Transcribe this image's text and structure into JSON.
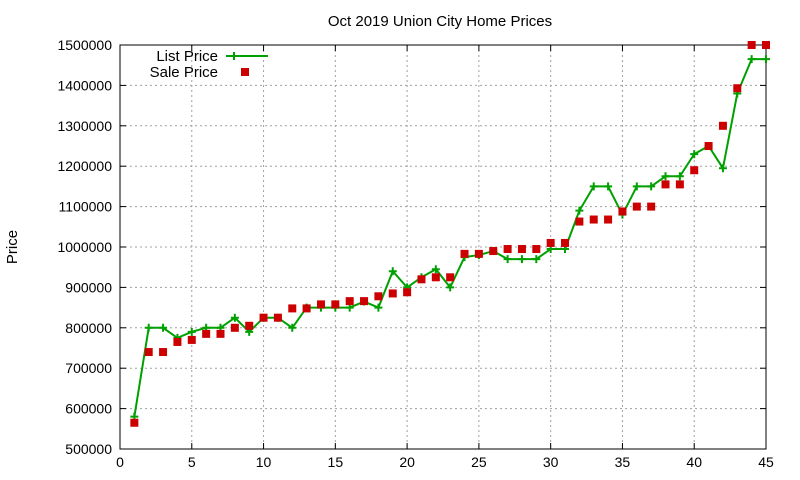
{
  "chart_data": {
    "type": "line",
    "title": "Oct 2019 Union City Home Prices",
    "xlabel": "",
    "ylabel": "Price",
    "xlim": [
      0,
      45
    ],
    "ylim": [
      500000,
      1500000
    ],
    "xticks": [
      0,
      5,
      10,
      15,
      20,
      25,
      30,
      35,
      40,
      45
    ],
    "yticks": [
      500000,
      600000,
      700000,
      800000,
      900000,
      1000000,
      1100000,
      1200000,
      1300000,
      1400000,
      1500000
    ],
    "grid": true,
    "legend_position": "top-left",
    "series": [
      {
        "name": "List Price",
        "style": "line-with-plus-markers",
        "color": "#00a000",
        "x": [
          1,
          2,
          3,
          4,
          5,
          6,
          7,
          8,
          9,
          10,
          11,
          12,
          13,
          14,
          15,
          16,
          17,
          18,
          19,
          20,
          21,
          22,
          23,
          24,
          25,
          26,
          27,
          28,
          29,
          30,
          31,
          32,
          33,
          34,
          35,
          36,
          37,
          38,
          39,
          40,
          41,
          42,
          43,
          44,
          45
        ],
        "y": [
          580000,
          800000,
          800000,
          775000,
          790000,
          800000,
          800000,
          825000,
          790000,
          825000,
          825000,
          800000,
          850000,
          850000,
          850000,
          850000,
          865000,
          850000,
          940000,
          900000,
          925000,
          945000,
          900000,
          975000,
          980000,
          990000,
          970000,
          970000,
          970000,
          995000,
          995000,
          1090000,
          1150000,
          1150000,
          1080000,
          1150000,
          1150000,
          1175000,
          1175000,
          1230000,
          1250000,
          1195000,
          1380000,
          1465000,
          1465000
        ]
      },
      {
        "name": "Sale Price",
        "style": "square-markers",
        "color": "#cc0000",
        "x": [
          1,
          2,
          3,
          4,
          5,
          6,
          7,
          8,
          9,
          10,
          11,
          12,
          13,
          14,
          15,
          16,
          17,
          18,
          19,
          20,
          21,
          22,
          23,
          24,
          25,
          26,
          27,
          28,
          29,
          30,
          31,
          32,
          33,
          34,
          35,
          36,
          37,
          38,
          39,
          40,
          41,
          42,
          43,
          44,
          45
        ],
        "y": [
          565000,
          740000,
          740000,
          765000,
          770000,
          785000,
          785000,
          800000,
          805000,
          825000,
          825000,
          848000,
          848000,
          858000,
          858000,
          866000,
          866000,
          878000,
          885000,
          888000,
          920000,
          925000,
          925000,
          983000,
          983000,
          990000,
          995000,
          995000,
          995000,
          1010000,
          1010000,
          1063000,
          1068000,
          1068000,
          1088000,
          1100000,
          1100000,
          1155000,
          1155000,
          1190000,
          1250000,
          1300000,
          1393000,
          1500000,
          1500000
        ]
      }
    ]
  }
}
